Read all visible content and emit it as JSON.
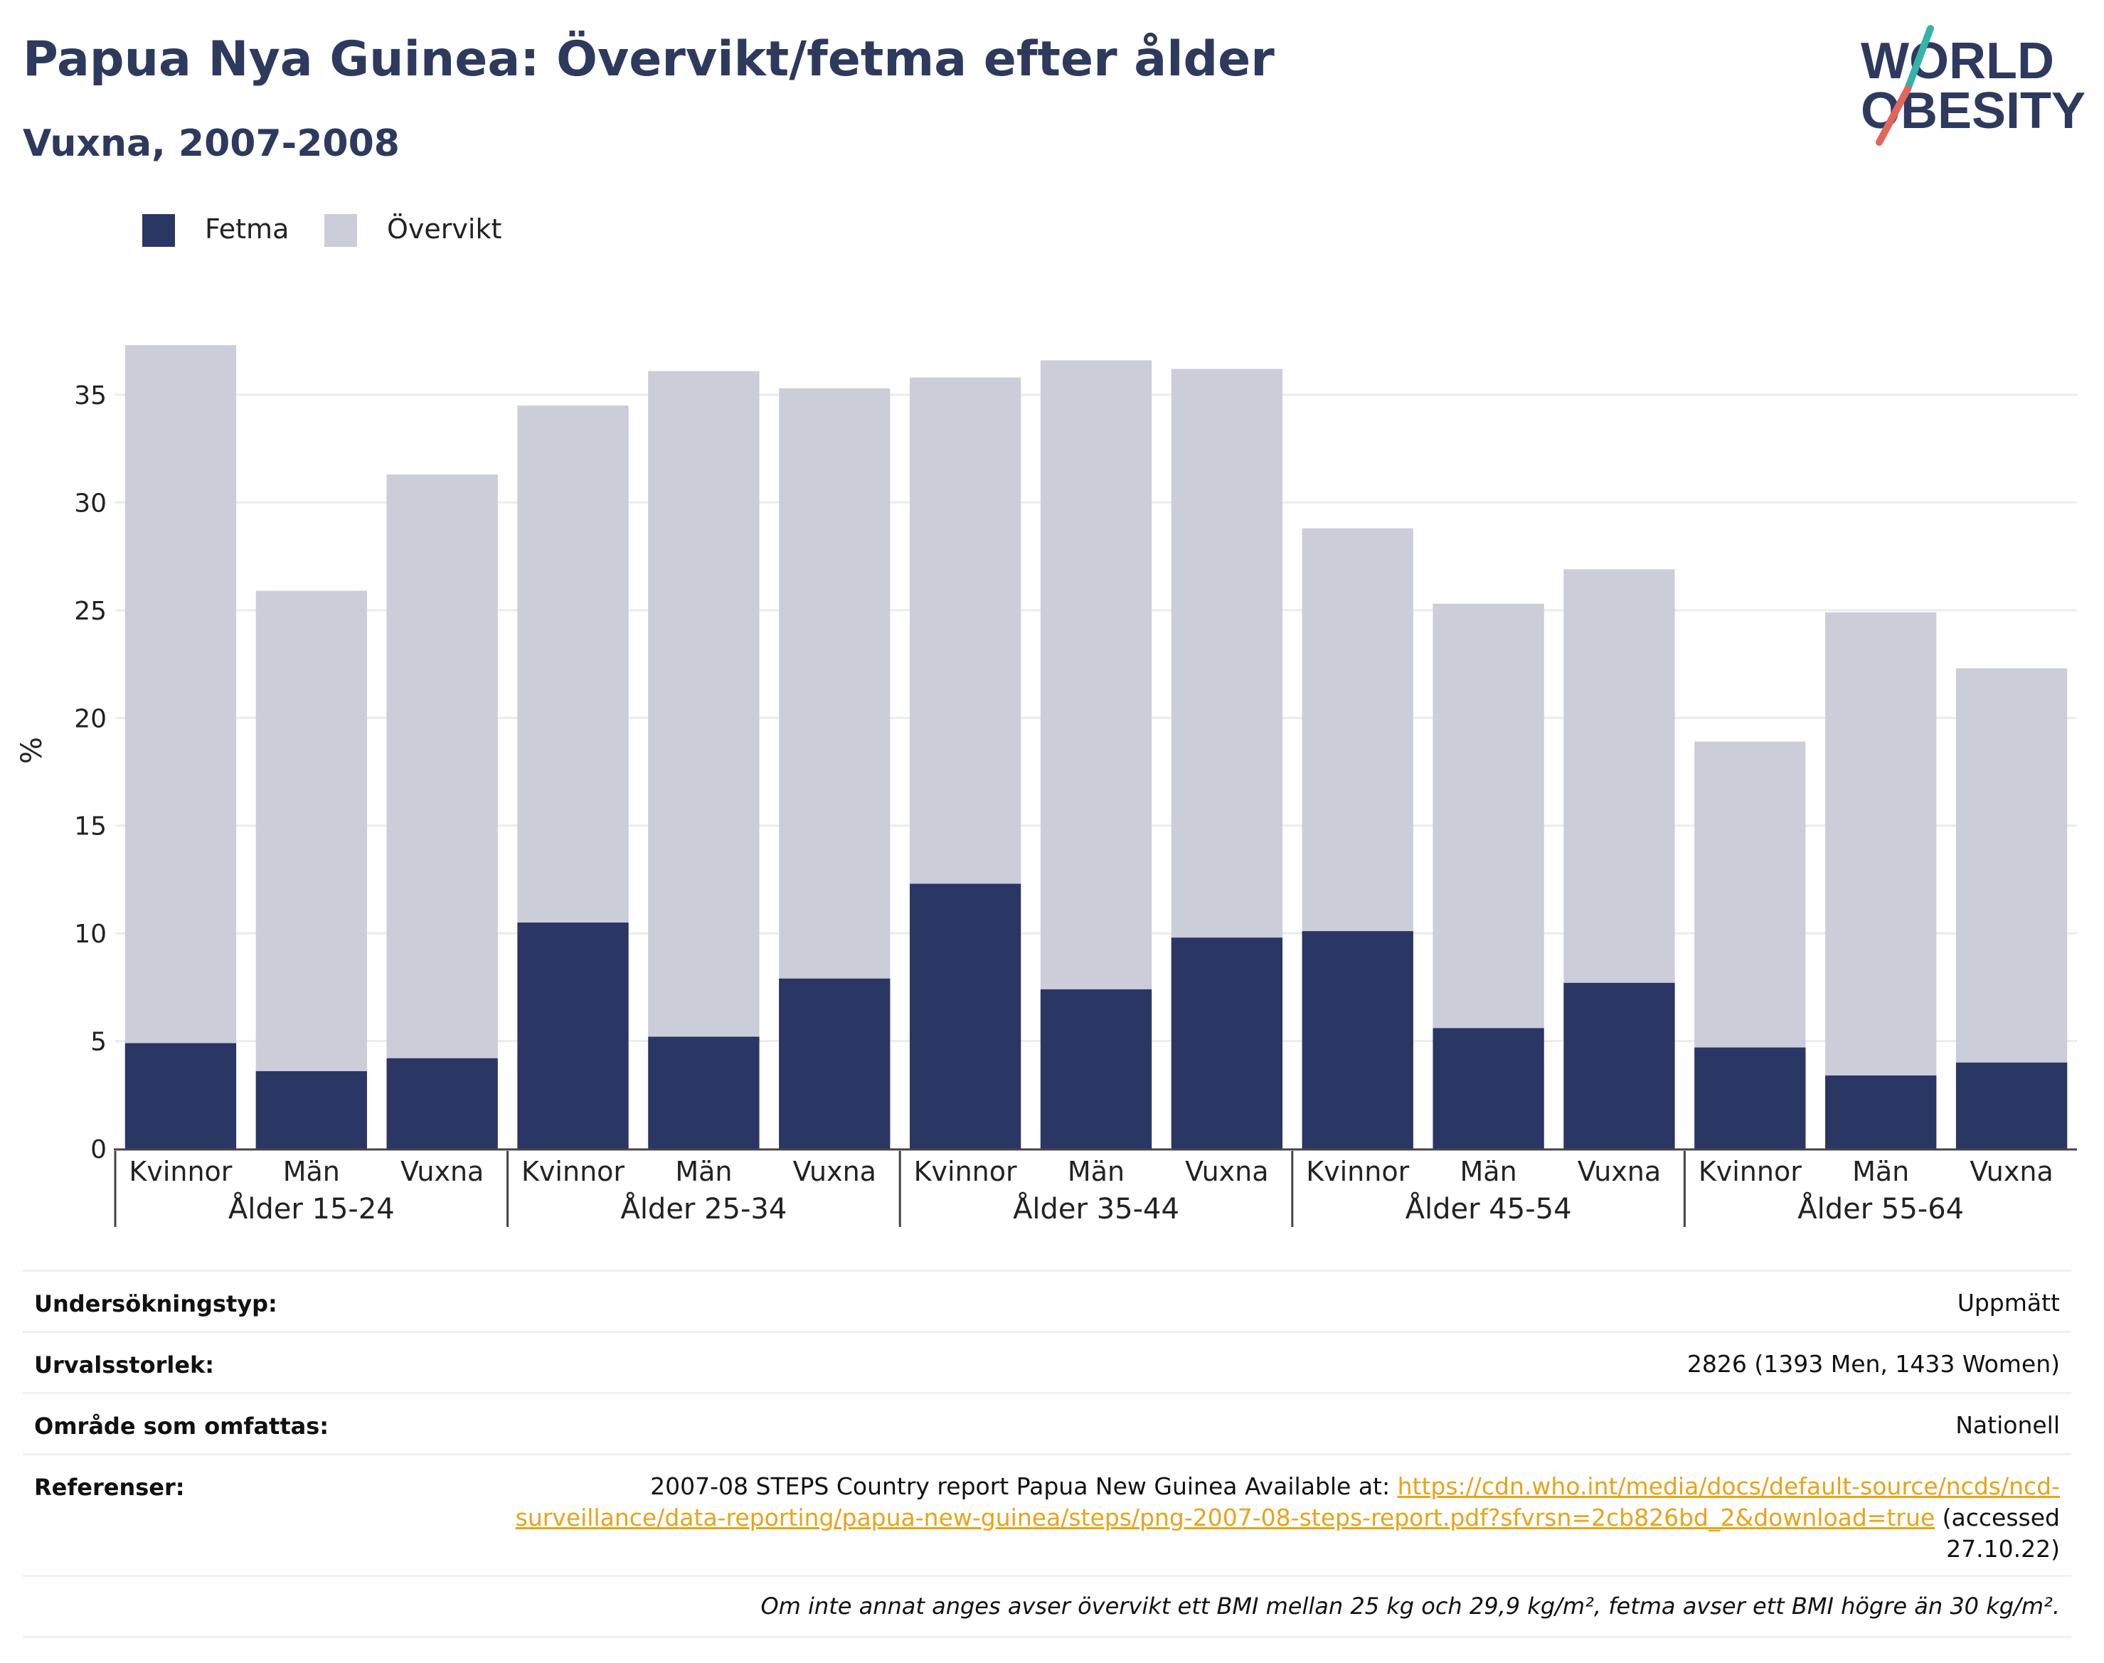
{
  "header": {
    "title": "Papua Nya Guinea: Övervikt/fetma efter ålder",
    "subtitle": "Vuxna, 2007-2008"
  },
  "logo": {
    "line1": "WORLD",
    "line2": "OBESITY",
    "icon": "world-obesity-logo"
  },
  "colors": {
    "fetma": "#2a3663",
    "overvikt": "#cbcdd9",
    "accent_teal": "#36b3a8",
    "accent_coral": "#e2665c",
    "link": "#e8a318"
  },
  "legend": [
    {
      "label": "Fetma",
      "color": "#2a3663"
    },
    {
      "label": "Övervikt",
      "color": "#cbcdd9"
    }
  ],
  "chart_data": {
    "type": "bar",
    "stacking": "overlaid",
    "ylabel": "%",
    "ylim": [
      0,
      37.5
    ],
    "yticks": [
      0,
      5,
      10,
      15,
      20,
      25,
      30,
      35
    ],
    "grid": true,
    "legend_position": "top-left",
    "groups": [
      {
        "label": "Ålder 15-24",
        "categories": [
          "Kvinnor",
          "Män",
          "Vuxna"
        ],
        "fetma": [
          4.9,
          3.6,
          4.2
        ],
        "overvikt": [
          37.3,
          25.9,
          31.3
        ]
      },
      {
        "label": "Ålder 25-34",
        "categories": [
          "Kvinnor",
          "Män",
          "Vuxna"
        ],
        "fetma": [
          10.5,
          5.2,
          7.9
        ],
        "overvikt": [
          34.5,
          36.1,
          35.3
        ]
      },
      {
        "label": "Ålder 35-44",
        "categories": [
          "Kvinnor",
          "Män",
          "Vuxna"
        ],
        "fetma": [
          12.3,
          7.4,
          9.8
        ],
        "overvikt": [
          35.8,
          36.6,
          36.2
        ]
      },
      {
        "label": "Ålder 45-54",
        "categories": [
          "Kvinnor",
          "Män",
          "Vuxna"
        ],
        "fetma": [
          10.1,
          5.6,
          7.7
        ],
        "overvikt": [
          28.8,
          25.3,
          26.9
        ]
      },
      {
        "label": "Ålder 55-64",
        "categories": [
          "Kvinnor",
          "Män",
          "Vuxna"
        ],
        "fetma": [
          4.7,
          3.4,
          4.0
        ],
        "overvikt": [
          18.9,
          24.9,
          22.3
        ]
      }
    ]
  },
  "info": {
    "survey_type": {
      "label": "Undersökningstyp:",
      "value": "Uppmätt"
    },
    "sample_size": {
      "label": "Urvalsstorlek:",
      "value": "2826 (1393 Men, 1433 Women)"
    },
    "area": {
      "label": "Område som omfattas:",
      "value": "Nationell"
    },
    "references": {
      "label": "Referenser:",
      "text_before": "2007-08 STEPS Country report Papua New Guinea Available at: ",
      "link_part1": "https://cdn.who.int/media/docs/default-source/ncds/ncd-",
      "link_part2": "surveillance/data-reporting/papua-new-guinea/steps/png-2007-08-steps-report.pdf?sfvrsn=2cb826bd_2&download=true",
      "text_after1": " (accessed",
      "text_after2": "27.10.22)"
    },
    "footnote": "Om inte annat anges avser övervikt ett BMI mellan 25 kg och 29,9 kg/m², fetma avser ett BMI högre än 30 kg/m²."
  }
}
